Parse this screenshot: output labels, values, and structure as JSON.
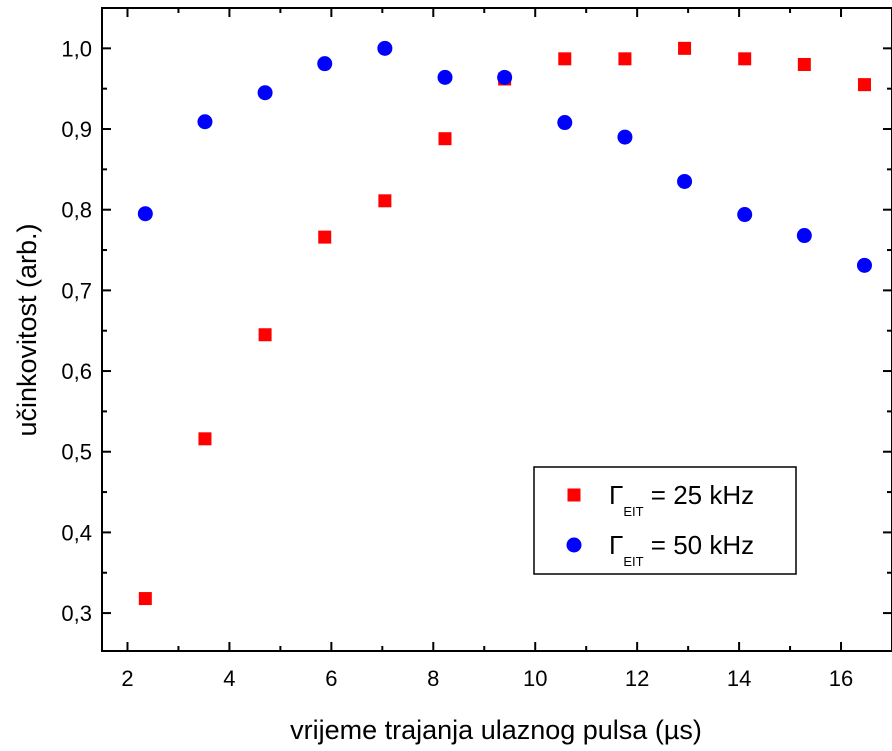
{
  "chart_data": {
    "type": "scatter",
    "xlabel": "vrijeme trajanja ulaznog pulsa (µs)",
    "ylabel": "učinkovitost (arb.)",
    "xlim": [
      1.5,
      17.0
    ],
    "ylim": [
      0.253,
      1.05
    ],
    "x_ticks": [
      2,
      4,
      6,
      8,
      10,
      12,
      14,
      16
    ],
    "x_tick_labels": [
      "2",
      "4",
      "6",
      "8",
      "10",
      "12",
      "14",
      "16"
    ],
    "y_ticks": [
      0.3,
      0.4,
      0.5,
      0.6,
      0.7,
      0.8,
      0.9,
      1.0
    ],
    "y_tick_labels": [
      "0,3",
      "0,4",
      "0,5",
      "0,6",
      "0,7",
      "0,8",
      "0,9",
      "1,0"
    ],
    "grid": false,
    "legend_position": "bottom-right",
    "series": [
      {
        "name": "Γ_EIT = 25 kHz",
        "legend_symbol": "Γ",
        "legend_subscript": "EIT",
        "legend_rest": " = 25 kHz",
        "marker": "square",
        "color": "#ff0000",
        "x": [
          2.35,
          3.52,
          4.7,
          5.87,
          7.05,
          8.23,
          9.4,
          10.58,
          11.76,
          12.93,
          14.11,
          15.28,
          16.46
        ],
        "values": [
          0.318,
          0.516,
          0.645,
          0.766,
          0.811,
          0.888,
          0.962,
          0.987,
          0.987,
          1.0,
          0.987,
          0.98,
          0.955
        ]
      },
      {
        "name": "Γ_EIT = 50 kHz",
        "legend_symbol": "Γ",
        "legend_subscript": "EIT",
        "legend_rest": " = 50 kHz",
        "marker": "circle",
        "color": "#0000ff",
        "x": [
          2.35,
          3.52,
          4.7,
          5.87,
          7.05,
          8.23,
          9.4,
          10.58,
          11.76,
          12.93,
          14.11,
          15.28,
          16.46
        ],
        "values": [
          0.795,
          0.909,
          0.945,
          0.981,
          1.0,
          0.964,
          0.964,
          0.908,
          0.89,
          0.835,
          0.794,
          0.768,
          0.731
        ]
      }
    ]
  }
}
